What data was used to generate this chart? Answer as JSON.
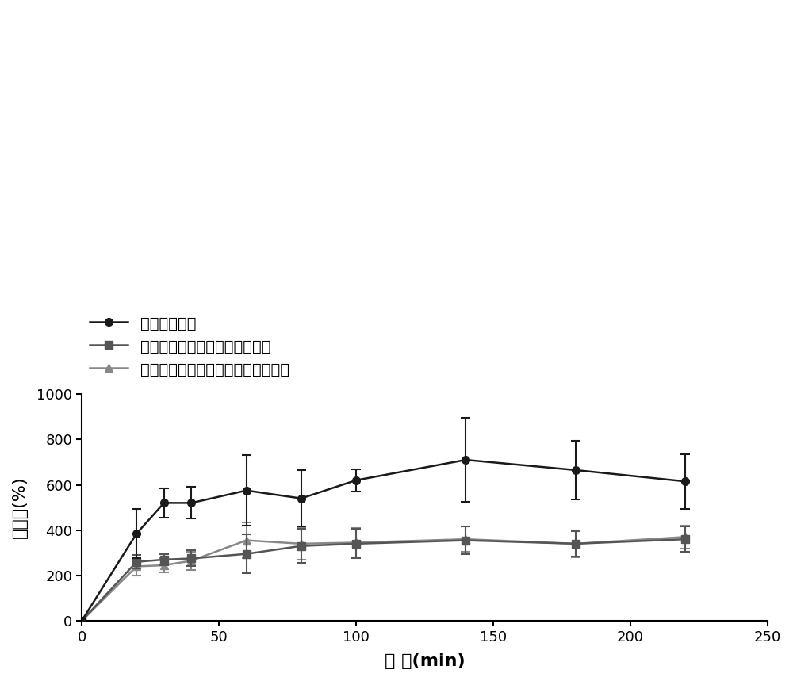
{
  "title": "",
  "xlabel": "时 间(min)",
  "ylabel": "溶胀率(%)",
  "xlim": [
    0,
    250
  ],
  "ylim": [
    0,
    1000
  ],
  "xticks": [
    0,
    50,
    100,
    150,
    200,
    250
  ],
  "yticks": [
    0,
    200,
    400,
    600,
    800,
    1000
  ],
  "legend_labels": [
    "冻干的藕支架",
    "裹覆壳聚糖的藕的组织工程支架",
    "裹覆交联壳聚糖的藕的组织工程支架"
  ],
  "series": [
    {
      "x": [
        0,
        20,
        30,
        40,
        60,
        80,
        100,
        140,
        180,
        220
      ],
      "y": [
        0,
        385,
        520,
        520,
        575,
        540,
        620,
        710,
        665,
        615
      ],
      "yerr": [
        0,
        110,
        65,
        70,
        155,
        125,
        50,
        185,
        130,
        120
      ],
      "color": "#1a1a1a",
      "marker": "o",
      "marker_size": 7,
      "linewidth": 1.8
    },
    {
      "x": [
        0,
        20,
        30,
        40,
        60,
        80,
        100,
        140,
        180,
        220
      ],
      "y": [
        0,
        260,
        270,
        275,
        295,
        330,
        340,
        355,
        340,
        360
      ],
      "yerr": [
        0,
        30,
        25,
        35,
        85,
        75,
        65,
        60,
        55,
        55
      ],
      "color": "#555555",
      "marker": "s",
      "marker_size": 7,
      "linewidth": 1.8
    },
    {
      "x": [
        0,
        20,
        30,
        40,
        60,
        80,
        100,
        140,
        180,
        220
      ],
      "y": [
        0,
        240,
        245,
        265,
        355,
        340,
        345,
        360,
        340,
        370
      ],
      "yerr": [
        0,
        40,
        30,
        40,
        80,
        70,
        65,
        55,
        60,
        50
      ],
      "color": "#888888",
      "marker": "^",
      "marker_size": 7,
      "linewidth": 1.8
    }
  ],
  "background_color": "#ffffff",
  "figsize": [
    10.0,
    8.59
  ],
  "dpi": 100
}
